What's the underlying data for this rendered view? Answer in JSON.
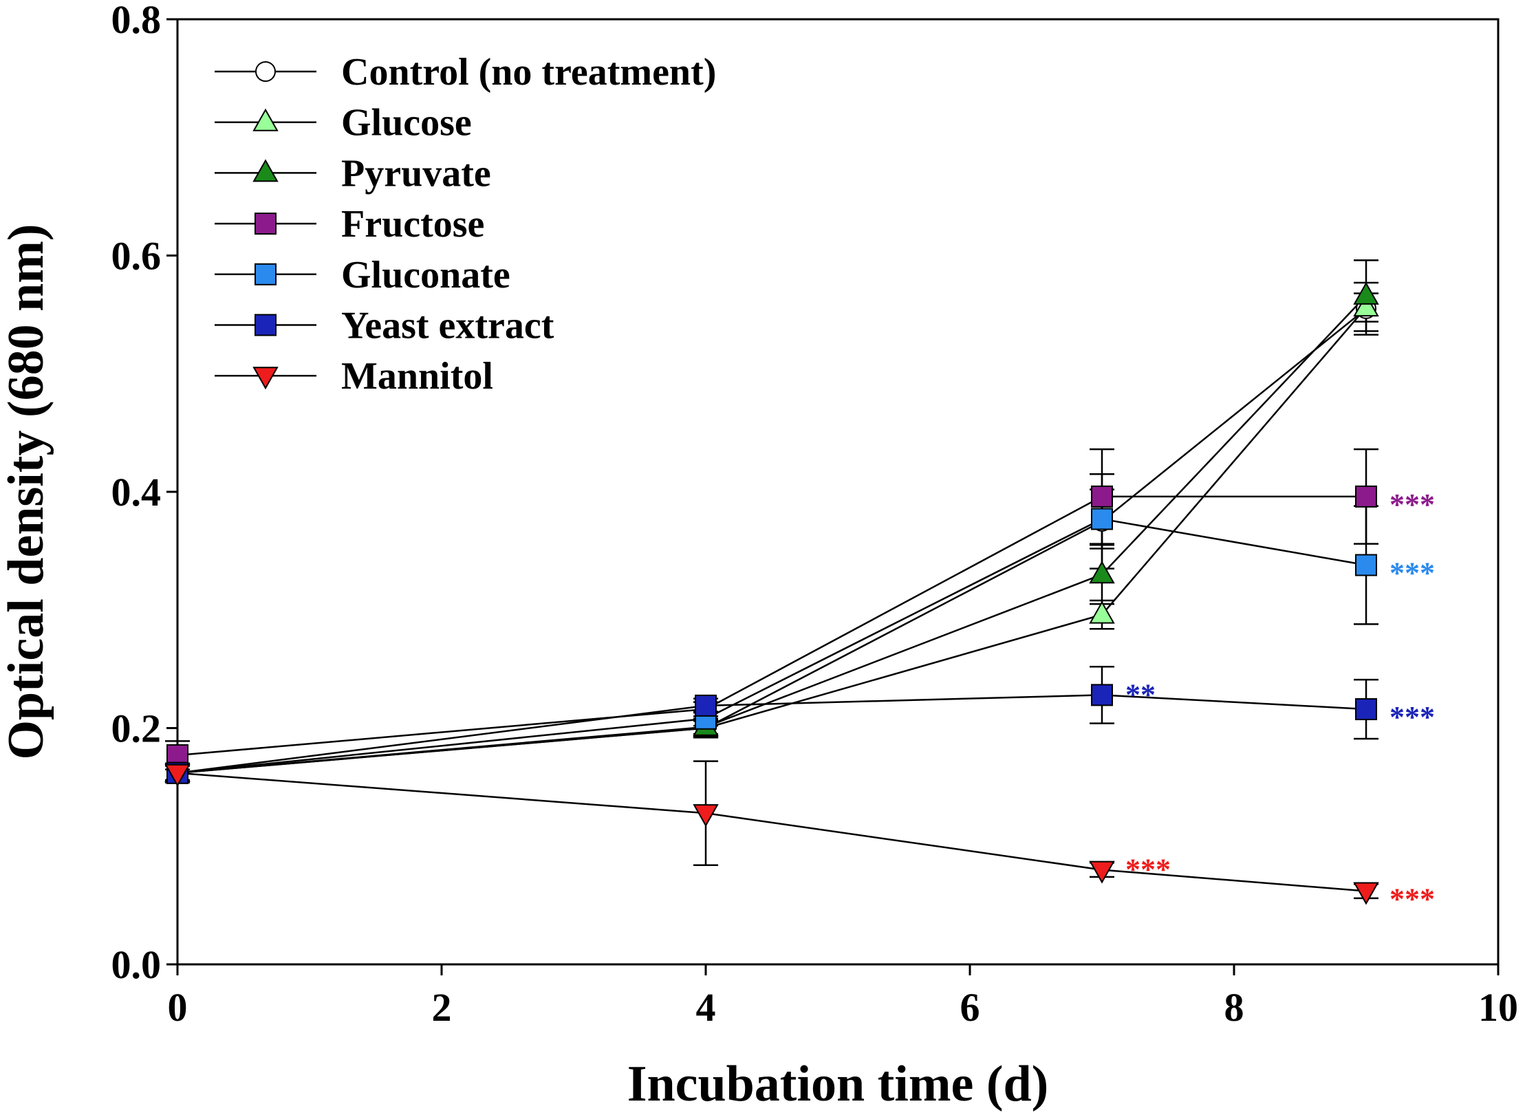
{
  "chart_data": {
    "type": "line",
    "title": "",
    "xlabel": "Incubation time (d)",
    "ylabel": "Optical density (680 nm)",
    "xlim": [
      0,
      10
    ],
    "ylim": [
      0.0,
      0.8
    ],
    "xticks": [
      0,
      2,
      4,
      6,
      8,
      10
    ],
    "xtick_labels": [
      "0",
      "2",
      "4",
      "6",
      "8",
      "10"
    ],
    "yticks": [
      0.0,
      0.2,
      0.4,
      0.6,
      0.8
    ],
    "ytick_labels": [
      "0.0",
      "0.2",
      "0.4",
      "0.6",
      "0.8"
    ],
    "grid": false,
    "legend_position": "top-left",
    "series": [
      {
        "name": "Control (no treatment)",
        "marker": "circle",
        "color": "#ffffff",
        "x": [
          0,
          4,
          7,
          9
        ],
        "y": [
          0.162,
          0.2,
          0.375,
          0.555
        ],
        "err": [
          0.008,
          0.008,
          0.04,
          0.022
        ]
      },
      {
        "name": "Glucose",
        "marker": "triangle-up",
        "color": "#99ff99",
        "x": [
          0,
          4,
          7,
          9
        ],
        "y": [
          0.162,
          0.2,
          0.296,
          0.556
        ],
        "err": [
          0.008,
          0.006,
          0.012,
          0.012
        ]
      },
      {
        "name": "Pyruvate",
        "marker": "triangle-up",
        "color": "#1a8a1a",
        "x": [
          0,
          4,
          7,
          9
        ],
        "y": [
          0.162,
          0.201,
          0.33,
          0.566
        ],
        "err": [
          0.008,
          0.006,
          0.025,
          0.03
        ]
      },
      {
        "name": "Fructose",
        "marker": "square",
        "color": "#8c1a8c",
        "x": [
          0,
          4,
          7,
          9
        ],
        "y": [
          0.177,
          0.216,
          0.396,
          0.396
        ],
        "err": [
          0.012,
          0.006,
          0.04,
          0.04
        ]
      },
      {
        "name": "Gluconate",
        "marker": "square",
        "color": "#2a8aee",
        "x": [
          0,
          4,
          7,
          9
        ],
        "y": [
          0.162,
          0.208,
          0.377,
          0.338
        ],
        "err": [
          0.008,
          0.006,
          0.025,
          0.05
        ]
      },
      {
        "name": "Yeast extract",
        "marker": "square",
        "color": "#1a24b8",
        "x": [
          0,
          4,
          7,
          9
        ],
        "y": [
          0.162,
          0.219,
          0.228,
          0.216
        ],
        "err": [
          0.008,
          0.006,
          0.024,
          0.025
        ]
      },
      {
        "name": "Mannitol",
        "marker": "triangle-down",
        "color": "#ee1c1c",
        "x": [
          0,
          4,
          7,
          9
        ],
        "y": [
          0.162,
          0.128,
          0.08,
          0.062
        ],
        "err": [
          0.006,
          0.044,
          0.006,
          0.006
        ]
      }
    ],
    "annotations": [
      {
        "text": "***",
        "x": 9,
        "y": 0.396,
        "color": "#8c1a8c"
      },
      {
        "text": "***",
        "x": 9,
        "y": 0.338,
        "color": "#2a8aee"
      },
      {
        "text": "**",
        "x": 7,
        "y": 0.235,
        "color": "#1a24b8"
      },
      {
        "text": "***",
        "x": 9,
        "y": 0.216,
        "color": "#1a24b8"
      },
      {
        "text": "***",
        "x": 7,
        "y": 0.087,
        "color": "#ee1c1c"
      },
      {
        "text": "***",
        "x": 9,
        "y": 0.062,
        "color": "#ee1c1c"
      }
    ]
  }
}
